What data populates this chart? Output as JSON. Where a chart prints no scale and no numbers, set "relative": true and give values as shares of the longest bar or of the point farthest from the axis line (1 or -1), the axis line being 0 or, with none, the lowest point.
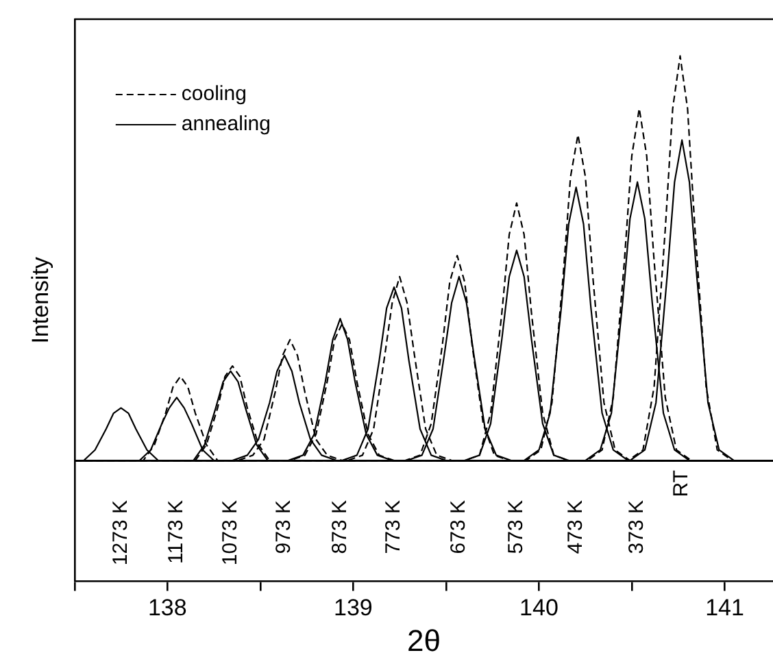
{
  "chart_data": {
    "type": "line",
    "xlabel": "2θ",
    "ylabel": "Intensity",
    "relative": true,
    "legend": "top left",
    "grid": false,
    "marker": "none",
    "xlim": [
      137.5,
      141.26
    ],
    "xticks": [
      {
        "value": 137.5,
        "label": null
      },
      138,
      {
        "value": 138.5,
        "label": null
      },
      139,
      {
        "value": 139.5,
        "label": null
      },
      140,
      {
        "value": 140.5,
        "label": null
      },
      141
    ],
    "series": [
      {
        "name": "cooling",
        "color": "#000000",
        "line_style": "dashed",
        "x": [
          137.5,
          137.79,
          137.87,
          137.93,
          137.99,
          138.03,
          138.07,
          138.11,
          138.15,
          138.21,
          138.27,
          138.35,
          141.26
        ],
        "values": [
          0.23,
          0.23,
          0.23,
          0.26,
          0.32,
          0.37,
          0.39,
          0.37,
          0.32,
          0.26,
          0.23,
          0.23,
          0.23
        ]
      },
      {
        "name": "annealing",
        "color": "#000000",
        "line_style": "solid",
        "x": [
          137.5,
          137.55,
          137.61,
          137.67,
          137.71,
          137.75,
          137.79,
          137.83,
          137.89,
          137.95,
          138.03,
          141.26
        ],
        "values": [
          0.23,
          0.23,
          0.25,
          0.29,
          0.32,
          0.33,
          0.32,
          0.29,
          0.25,
          0.23,
          0.23,
          0.23
        ]
      },
      {
        "color": "#000000",
        "line_style": "solid",
        "x": [
          137.5,
          137.77,
          137.85,
          137.91,
          137.97,
          138.01,
          138.05,
          138.09,
          138.13,
          138.19,
          138.25,
          138.33,
          141.26
        ],
        "values": [
          0.23,
          0.23,
          0.23,
          0.25,
          0.3,
          0.33,
          0.35,
          0.33,
          0.3,
          0.25,
          0.23,
          0.23,
          0.23
        ]
      },
      {
        "color": "#000000",
        "line_style": "dashed",
        "x": [
          137.5,
          138.07,
          138.15,
          138.21,
          138.27,
          138.31,
          138.35,
          138.39,
          138.43,
          138.49,
          138.55,
          138.63,
          141.26
        ],
        "values": [
          0.23,
          0.23,
          0.23,
          0.26,
          0.33,
          0.39,
          0.41,
          0.39,
          0.33,
          0.26,
          0.23,
          0.23,
          0.23
        ]
      },
      {
        "color": "#000000",
        "line_style": "solid",
        "x": [
          137.5,
          138.06,
          138.14,
          138.2,
          138.26,
          138.3,
          138.34,
          138.38,
          138.42,
          138.48,
          138.54,
          138.62,
          141.26
        ],
        "values": [
          0.23,
          0.23,
          0.23,
          0.26,
          0.33,
          0.38,
          0.4,
          0.38,
          0.33,
          0.26,
          0.23,
          0.23,
          0.23
        ]
      },
      {
        "color": "#000000",
        "line_style": "dashed",
        "x": [
          137.5,
          138.38,
          138.46,
          138.52,
          138.58,
          138.62,
          138.66,
          138.7,
          138.74,
          138.8,
          138.86,
          138.94,
          141.26
        ],
        "values": [
          0.23,
          0.23,
          0.24,
          0.27,
          0.36,
          0.43,
          0.46,
          0.43,
          0.36,
          0.27,
          0.24,
          0.23,
          0.23
        ]
      },
      {
        "color": "#000000",
        "line_style": "solid",
        "x": [
          137.5,
          138.35,
          138.43,
          138.49,
          138.55,
          138.59,
          138.63,
          138.67,
          138.71,
          138.77,
          138.83,
          138.91,
          141.26
        ],
        "values": [
          0.23,
          0.23,
          0.24,
          0.27,
          0.34,
          0.4,
          0.43,
          0.4,
          0.34,
          0.27,
          0.24,
          0.23,
          0.23
        ]
      },
      {
        "color": "#000000",
        "line_style": "dashed",
        "x": [
          137.5,
          138.66,
          138.74,
          138.8,
          138.86,
          138.9,
          138.94,
          138.98,
          139.02,
          139.08,
          139.14,
          139.22,
          141.26
        ],
        "values": [
          0.23,
          0.23,
          0.24,
          0.28,
          0.38,
          0.46,
          0.49,
          0.46,
          0.38,
          0.28,
          0.24,
          0.23,
          0.23
        ]
      },
      {
        "color": "#000000",
        "line_style": "solid",
        "x": [
          137.5,
          138.65,
          138.73,
          138.79,
          138.85,
          138.89,
          138.93,
          138.97,
          139.01,
          139.07,
          139.13,
          139.21,
          141.26
        ],
        "values": [
          0.23,
          0.23,
          0.24,
          0.28,
          0.38,
          0.46,
          0.5,
          0.46,
          0.38,
          0.28,
          0.24,
          0.23,
          0.23
        ]
      },
      {
        "color": "#000000",
        "line_style": "dashed",
        "x": [
          137.5,
          138.97,
          139.05,
          139.11,
          139.17,
          139.21,
          139.25,
          139.29,
          139.33,
          139.39,
          139.45,
          139.53,
          141.26
        ],
        "values": [
          0.23,
          0.23,
          0.24,
          0.29,
          0.43,
          0.53,
          0.58,
          0.53,
          0.43,
          0.29,
          0.24,
          0.23,
          0.23
        ]
      },
      {
        "color": "#000000",
        "line_style": "solid",
        "x": [
          137.5,
          138.94,
          139.02,
          139.08,
          139.14,
          139.18,
          139.22,
          139.26,
          139.3,
          139.36,
          139.42,
          139.5,
          141.26
        ],
        "values": [
          0.23,
          0.23,
          0.24,
          0.29,
          0.42,
          0.52,
          0.56,
          0.52,
          0.42,
          0.29,
          0.24,
          0.23,
          0.23
        ]
      },
      {
        "color": "#000000",
        "line_style": "dashed",
        "x": [
          137.5,
          139.28,
          139.36,
          139.42,
          139.48,
          139.52,
          139.56,
          139.6,
          139.64,
          139.7,
          139.76,
          139.84,
          141.26
        ],
        "values": [
          0.23,
          0.23,
          0.24,
          0.3,
          0.45,
          0.57,
          0.62,
          0.57,
          0.45,
          0.3,
          0.24,
          0.23,
          0.23
        ]
      },
      {
        "color": "#000000",
        "line_style": "solid",
        "x": [
          137.5,
          139.29,
          139.37,
          139.43,
          139.49,
          139.53,
          139.57,
          139.61,
          139.65,
          139.71,
          139.77,
          139.85,
          141.26
        ],
        "values": [
          0.23,
          0.23,
          0.24,
          0.29,
          0.43,
          0.53,
          0.58,
          0.53,
          0.43,
          0.29,
          0.24,
          0.23,
          0.23
        ]
      },
      {
        "color": "#000000",
        "line_style": "dashed",
        "x": [
          137.5,
          139.6,
          139.68,
          139.74,
          139.8,
          139.84,
          139.88,
          139.92,
          139.96,
          140.02,
          140.08,
          140.16,
          141.26
        ],
        "values": [
          0.23,
          0.23,
          0.24,
          0.32,
          0.51,
          0.66,
          0.72,
          0.66,
          0.51,
          0.32,
          0.24,
          0.23,
          0.23
        ]
      },
      {
        "color": "#000000",
        "line_style": "solid",
        "x": [
          137.5,
          139.6,
          139.68,
          139.74,
          139.8,
          139.84,
          139.88,
          139.92,
          139.96,
          140.02,
          140.08,
          140.16,
          141.26
        ],
        "values": [
          0.23,
          0.23,
          0.24,
          0.3,
          0.46,
          0.58,
          0.63,
          0.58,
          0.46,
          0.3,
          0.24,
          0.23,
          0.23
        ]
      },
      {
        "color": "#000000",
        "line_style": "dashed",
        "x": [
          137.5,
          139.93,
          140.01,
          140.07,
          140.13,
          140.17,
          140.21,
          140.25,
          140.29,
          140.35,
          140.41,
          140.49,
          141.26
        ],
        "values": [
          0.23,
          0.23,
          0.25,
          0.34,
          0.58,
          0.77,
          0.85,
          0.77,
          0.58,
          0.34,
          0.25,
          0.23,
          0.23
        ]
      },
      {
        "color": "#000000",
        "line_style": "solid",
        "x": [
          137.5,
          139.92,
          140.0,
          140.06,
          140.12,
          140.16,
          140.2,
          140.24,
          140.28,
          140.34,
          140.4,
          140.48,
          141.26
        ],
        "values": [
          0.23,
          0.23,
          0.25,
          0.32,
          0.52,
          0.68,
          0.75,
          0.68,
          0.52,
          0.32,
          0.25,
          0.23,
          0.23
        ]
      },
      {
        "color": "#000000",
        "line_style": "dashed",
        "x": [
          137.5,
          140.26,
          140.34,
          140.4,
          140.46,
          140.5,
          140.54,
          140.58,
          140.62,
          140.68,
          140.74,
          140.82,
          141.26
        ],
        "values": [
          0.23,
          0.23,
          0.25,
          0.35,
          0.61,
          0.81,
          0.9,
          0.81,
          0.61,
          0.35,
          0.25,
          0.23,
          0.23
        ]
      },
      {
        "color": "#000000",
        "line_style": "solid",
        "x": [
          137.5,
          140.25,
          140.33,
          140.39,
          140.45,
          140.49,
          140.53,
          140.57,
          140.61,
          140.67,
          140.73,
          140.81,
          141.26
        ],
        "values": [
          0.23,
          0.23,
          0.25,
          0.32,
          0.53,
          0.69,
          0.76,
          0.69,
          0.53,
          0.32,
          0.25,
          0.23,
          0.23
        ]
      },
      {
        "color": "#000000",
        "line_style": "dashed",
        "x": [
          137.5,
          140.48,
          140.56,
          140.62,
          140.68,
          140.72,
          140.76,
          140.8,
          140.84,
          140.9,
          140.96,
          141.04,
          141.26
        ],
        "values": [
          0.23,
          0.23,
          0.25,
          0.37,
          0.67,
          0.9,
          1.0,
          0.9,
          0.67,
          0.37,
          0.25,
          0.23,
          0.23
        ]
      },
      {
        "color": "#000000",
        "line_style": "solid",
        "x": [
          137.5,
          140.49,
          140.57,
          140.63,
          140.69,
          140.73,
          140.77,
          140.81,
          140.85,
          140.91,
          140.97,
          141.05,
          141.26
        ],
        "values": [
          0.23,
          0.23,
          0.25,
          0.34,
          0.58,
          0.76,
          0.84,
          0.76,
          0.58,
          0.34,
          0.25,
          0.23,
          0.23
        ]
      }
    ],
    "annotations": [
      {
        "text": "1273 K",
        "x": 137.75,
        "y": 0.23
      },
      {
        "text": "1173 K",
        "x": 138.05,
        "y": 0.23
      },
      {
        "text": "1073 K",
        "x": 138.34,
        "y": 0.23
      },
      {
        "text": "973 K",
        "x": 138.63,
        "y": 0.23
      },
      {
        "text": "873 K",
        "x": 138.93,
        "y": 0.23
      },
      {
        "text": "773 K",
        "x": 139.22,
        "y": 0.23
      },
      {
        "text": "673 K",
        "x": 139.57,
        "y": 0.23
      },
      {
        "text": "573 K",
        "x": 139.88,
        "y": 0.23
      },
      {
        "text": "473 K",
        "x": 140.2,
        "y": 0.23
      },
      {
        "text": "373 K",
        "x": 140.53,
        "y": 0.23
      },
      {
        "text": "RT",
        "x": 140.77,
        "y": 0.23
      }
    ]
  }
}
